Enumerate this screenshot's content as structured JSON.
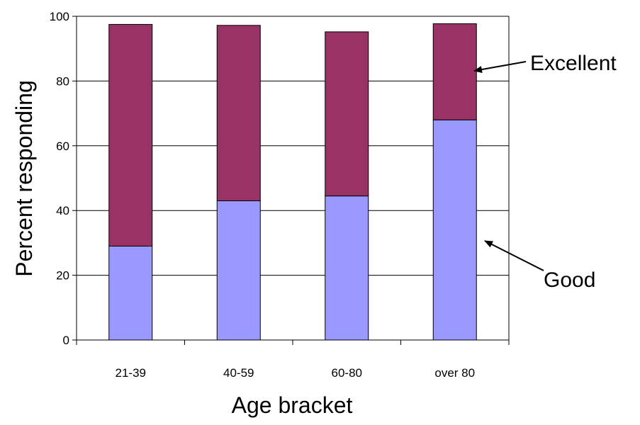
{
  "chart_data": {
    "type": "bar",
    "stacked": true,
    "categories": [
      "21-39",
      "40-59",
      "60-80",
      "over 80"
    ],
    "series": [
      {
        "name": "Good",
        "values": [
          29,
          43,
          44.5,
          68
        ],
        "color": "#9999ff"
      },
      {
        "name": "Excellent",
        "values": [
          68.5,
          54.2,
          50.7,
          29.7
        ],
        "color": "#993366"
      }
    ],
    "xlabel": "Age bracket",
    "ylabel": "Percent responding",
    "ylim": [
      0,
      100
    ],
    "yticks": [
      0,
      20,
      40,
      60,
      80,
      100
    ],
    "grid": true,
    "annotations": [
      "Excellent",
      "Good"
    ]
  }
}
